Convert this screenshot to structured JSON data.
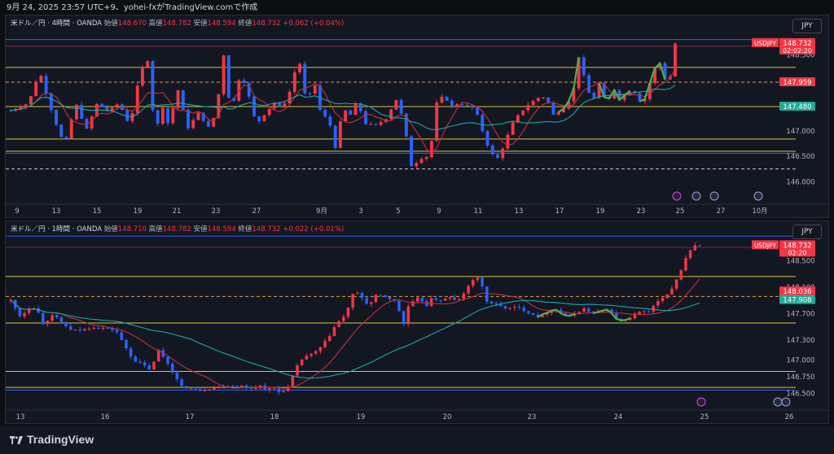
{
  "caption": "9月 24, 2025 23:57 UTC+9、yohei-fxがTradingView.comで作成",
  "brand": "TradingView",
  "chart_data": [
    {
      "type": "candlestick",
      "symbol_title": "米ドル／円 · 4時間 · OANDA",
      "ohlc_labels": {
        "open": "始値",
        "high": "高値",
        "low": "安値",
        "close": "終値"
      },
      "ohlc_values": {
        "open": "148.670",
        "high": "148.782",
        "low": "148.594",
        "close": "148.732",
        "change": "+0.062 (+0.04%)"
      },
      "currency_button": "JPY",
      "y_ticks": [
        "148.500",
        "147.500",
        "147.000",
        "146.500",
        "146.000"
      ],
      "ylim": [
        145.78,
        149.05
      ],
      "x_ticks": [
        "9",
        "13",
        "15",
        "19",
        "21",
        "23",
        "27",
        "9月",
        "3",
        "5",
        "9",
        "11",
        "13",
        "17",
        "19",
        "23",
        "25",
        "27",
        "10月"
      ],
      "price_tags": [
        {
          "label": "USDJPY",
          "value": "148.732",
          "countdown": "02:02:20",
          "color": "#f23645"
        },
        {
          "value": "147.959",
          "color": "#f23645"
        },
        {
          "value": "147.480",
          "color": "#22ab94"
        }
      ],
      "levels_solid_yellow": [
        148.25,
        147.48,
        146.84,
        146.6
      ],
      "levels_dashed": [
        147.96,
        146.25
      ],
      "levels_blue": [
        148.8,
        146.56
      ],
      "level_red": 148.67,
      "count": 132,
      "close_path": [
        [
          0,
          147.4
        ],
        [
          10,
          147.55
        ],
        [
          16,
          148.18
        ],
        [
          24,
          147.25
        ],
        [
          30,
          146.7
        ],
        [
          36,
          147.55
        ],
        [
          42,
          147.02
        ],
        [
          48,
          147.55
        ],
        [
          54,
          147.38
        ],
        [
          60,
          147.55
        ],
        [
          66,
          147.1
        ],
        [
          72,
          148.2
        ],
        [
          76,
          148.4
        ],
        [
          80,
          146.92
        ],
        [
          84,
          147.5
        ],
        [
          88,
          147.05
        ],
        [
          92,
          147.9
        ],
        [
          98,
          147.05
        ],
        [
          104,
          147.35
        ],
        [
          110,
          147.05
        ],
        [
          114,
          147.4
        ],
        [
          118,
          148.5
        ],
        [
          122,
          147.3
        ],
        [
          126,
          148.02
        ],
        [
          130,
          147.95
        ],
        [
          136,
          147.12
        ],
        [
          142,
          147.4
        ],
        [
          146,
          147.55
        ],
        [
          150,
          147.45
        ],
        [
          154,
          147.7
        ],
        [
          158,
          148.25
        ],
        [
          160,
          148.35
        ],
        [
          164,
          147.5
        ],
        [
          168,
          148.0
        ],
        [
          172,
          147.3
        ],
        [
          176,
          147.25
        ],
        [
          180,
          146.65
        ],
        [
          184,
          147.45
        ],
        [
          188,
          147.3
        ],
        [
          192,
          147.6
        ],
        [
          196,
          147.15
        ],
        [
          202,
          147.1
        ],
        [
          208,
          147.25
        ],
        [
          214,
          147.65
        ],
        [
          218,
          147.1
        ],
        [
          222,
          146.3
        ],
        [
          228,
          146.48
        ],
        [
          232,
          146.5
        ],
        [
          236,
          147.55
        ],
        [
          240,
          147.7
        ],
        [
          244,
          147.48
        ],
        [
          248,
          147.55
        ],
        [
          252,
          147.5
        ],
        [
          256,
          147.45
        ],
        [
          258,
          147.35
        ],
        [
          262,
          146.92
        ],
        [
          266,
          146.55
        ],
        [
          270,
          146.45
        ],
        [
          274,
          146.8
        ],
        [
          278,
          147.15
        ],
        [
          282,
          147.35
        ],
        [
          286,
          147.5
        ],
        [
          290,
          147.6
        ],
        [
          294,
          147.7
        ],
        [
          298,
          147.55
        ],
        [
          300,
          147.3
        ],
        [
          306,
          147.45
        ],
        [
          310,
          147.65
        ],
        [
          312,
          147.85
        ],
        [
          314,
          148.55
        ],
        [
          318,
          148.0
        ],
        [
          322,
          147.55
        ],
        [
          326,
          147.95
        ],
        [
          330,
          147.5
        ],
        [
          334,
          147.85
        ],
        [
          336,
          147.6
        ],
        [
          340,
          147.7
        ],
        [
          344,
          147.85
        ],
        [
          350,
          147.5
        ],
        [
          354,
          147.95
        ],
        [
          356,
          148.2
        ],
        [
          360,
          148.35
        ],
        [
          364,
          147.8
        ],
        [
          368,
          148.72
        ]
      ]
    },
    {
      "type": "candlestick",
      "symbol_title": "米ドル／円 · 1時間 · OANDA",
      "ohlc_labels": {
        "open": "始値",
        "high": "高値",
        "low": "安値",
        "close": "終値"
      },
      "ohlc_values": {
        "open": "148.710",
        "high": "148.782",
        "low": "148.594",
        "close": "148.732",
        "change": "+0.022 (+0.01%)"
      },
      "currency_button": "JPY",
      "y_ticks": [
        "148.500",
        "148.100",
        "147.700",
        "147.300",
        "147.000",
        "146.750",
        "146.500"
      ],
      "ylim": [
        146.42,
        148.92
      ],
      "x_ticks": [
        "13",
        "16",
        "17",
        "18",
        "19",
        "20",
        "23",
        "24",
        "25",
        "26"
      ],
      "price_tags": [
        {
          "label": "USDJPY",
          "value": "148.732",
          "countdown": "02:20",
          "color": "#f23645"
        },
        {
          "value": "148.036",
          "color": "#f23645"
        },
        {
          "value": "147.908",
          "color": "#22ab94"
        }
      ],
      "levels_solid_yellow": [
        148.26,
        147.56,
        146.83,
        146.59
      ],
      "levels_dashed": [
        147.96
      ],
      "levels_blue": [
        148.87,
        146.55
      ],
      "level_red": 148.7,
      "count": 150,
      "close_path": [
        [
          0,
          147.9
        ],
        [
          8,
          147.65
        ],
        [
          14,
          147.78
        ],
        [
          20,
          147.8
        ],
        [
          26,
          147.55
        ],
        [
          34,
          147.68
        ],
        [
          40,
          147.58
        ],
        [
          48,
          147.45
        ],
        [
          56,
          147.45
        ],
        [
          66,
          147.5
        ],
        [
          76,
          147.48
        ],
        [
          84,
          147.45
        ],
        [
          90,
          147.25
        ],
        [
          98,
          147.0
        ],
        [
          104,
          146.95
        ],
        [
          112,
          146.85
        ],
        [
          118,
          147.15
        ],
        [
          124,
          147.0
        ],
        [
          130,
          146.8
        ],
        [
          136,
          146.6
        ],
        [
          142,
          146.58
        ],
        [
          150,
          146.55
        ],
        [
          158,
          146.57
        ],
        [
          166,
          146.6
        ],
        [
          172,
          146.62
        ],
        [
          180,
          146.6
        ],
        [
          184,
          146.62
        ],
        [
          188,
          146.58
        ],
        [
          194,
          146.58
        ],
        [
          200,
          146.62
        ],
        [
          204,
          146.55
        ],
        [
          210,
          146.58
        ],
        [
          214,
          146.52
        ],
        [
          218,
          146.55
        ],
        [
          222,
          146.6
        ],
        [
          226,
          146.8
        ],
        [
          230,
          146.95
        ],
        [
          234,
          147.05
        ],
        [
          242,
          147.1
        ],
        [
          248,
          147.2
        ],
        [
          254,
          147.35
        ],
        [
          260,
          147.55
        ],
        [
          266,
          147.65
        ],
        [
          272,
          147.9
        ],
        [
          274,
          148.05
        ],
        [
          280,
          147.95
        ],
        [
          286,
          147.82
        ],
        [
          292,
          147.98
        ],
        [
          300,
          147.95
        ],
        [
          306,
          147.9
        ],
        [
          310,
          147.75
        ],
        [
          312,
          147.5
        ],
        [
          314,
          147.55
        ],
        [
          318,
          147.85
        ],
        [
          322,
          147.88
        ],
        [
          326,
          147.95
        ],
        [
          332,
          147.82
        ],
        [
          336,
          147.92
        ],
        [
          344,
          147.9
        ],
        [
          350,
          147.95
        ],
        [
          356,
          147.88
        ],
        [
          362,
          148.0
        ],
        [
          368,
          148.2
        ],
        [
          372,
          148.25
        ],
        [
          376,
          148.15
        ],
        [
          380,
          147.88
        ],
        [
          386,
          147.85
        ],
        [
          392,
          147.8
        ],
        [
          398,
          147.78
        ],
        [
          404,
          147.8
        ],
        [
          410,
          147.75
        ],
        [
          416,
          147.7
        ],
        [
          422,
          147.65
        ],
        [
          428,
          147.72
        ],
        [
          434,
          147.78
        ],
        [
          440,
          147.7
        ],
        [
          446,
          147.65
        ],
        [
          452,
          147.72
        ],
        [
          458,
          147.78
        ],
        [
          464,
          147.7
        ],
        [
          470,
          147.72
        ],
        [
          476,
          147.78
        ],
        [
          482,
          147.65
        ],
        [
          488,
          147.58
        ],
        [
          494,
          147.62
        ],
        [
          500,
          147.7
        ],
        [
          506,
          147.75
        ],
        [
          510,
          147.72
        ],
        [
          514,
          147.85
        ],
        [
          518,
          147.9
        ],
        [
          522,
          147.95
        ],
        [
          526,
          148.0
        ],
        [
          530,
          148.15
        ],
        [
          534,
          148.3
        ],
        [
          538,
          148.5
        ],
        [
          542,
          148.65
        ],
        [
          546,
          148.72
        ],
        [
          550,
          148.73
        ]
      ]
    }
  ]
}
